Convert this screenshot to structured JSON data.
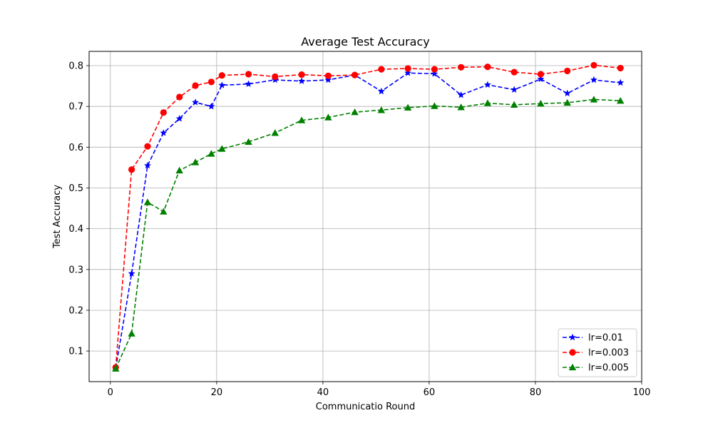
{
  "chart_data": {
    "type": "line",
    "title": "Average Test Accuracy",
    "xlabel": "Communicatio Round",
    "ylabel": "Test Accuracy",
    "xlim": [
      -4,
      100
    ],
    "ylim": [
      0.025,
      0.835
    ],
    "xticks": [
      0,
      20,
      40,
      60,
      80,
      100
    ],
    "yticks": [
      0.1,
      0.2,
      0.3,
      0.4,
      0.5,
      0.6,
      0.7,
      0.8
    ],
    "grid": true,
    "legend_position": "bottom-right",
    "series": [
      {
        "name": "lr=0.01",
        "color": "#0000ff",
        "marker": "star",
        "line_style": "dashed",
        "x": [
          1,
          4,
          7,
          10,
          13,
          16,
          19,
          21,
          26,
          31,
          36,
          41,
          46,
          51,
          56,
          61,
          66,
          71,
          76,
          81,
          86,
          91,
          96
        ],
        "y": [
          0.058,
          0.29,
          0.555,
          0.635,
          0.67,
          0.71,
          0.7,
          0.752,
          0.755,
          0.765,
          0.762,
          0.765,
          0.777,
          0.737,
          0.782,
          0.78,
          0.728,
          0.753,
          0.741,
          0.767,
          0.732,
          0.765,
          0.758
        ]
      },
      {
        "name": "lr=0.003",
        "color": "#ff0000",
        "marker": "circle",
        "line_style": "dashed",
        "x": [
          1,
          4,
          7,
          10,
          13,
          16,
          19,
          21,
          26,
          31,
          36,
          41,
          46,
          51,
          56,
          61,
          66,
          71,
          76,
          81,
          86,
          91,
          96
        ],
        "y": [
          0.06,
          0.545,
          0.602,
          0.685,
          0.723,
          0.751,
          0.76,
          0.776,
          0.779,
          0.773,
          0.778,
          0.775,
          0.777,
          0.791,
          0.793,
          0.791,
          0.796,
          0.797,
          0.784,
          0.779,
          0.787,
          0.801,
          0.794
        ]
      },
      {
        "name": "lr=0.005",
        "color": "#008000",
        "marker": "triangle",
        "line_style": "dashed",
        "x": [
          1,
          4,
          7,
          10,
          13,
          16,
          19,
          21,
          26,
          31,
          36,
          41,
          46,
          51,
          56,
          61,
          66,
          71,
          76,
          81,
          86,
          91,
          96
        ],
        "y": [
          0.057,
          0.143,
          0.465,
          0.442,
          0.543,
          0.563,
          0.584,
          0.596,
          0.613,
          0.635,
          0.666,
          0.673,
          0.686,
          0.691,
          0.697,
          0.701,
          0.698,
          0.708,
          0.704,
          0.707,
          0.709,
          0.717,
          0.714
        ]
      }
    ]
  }
}
